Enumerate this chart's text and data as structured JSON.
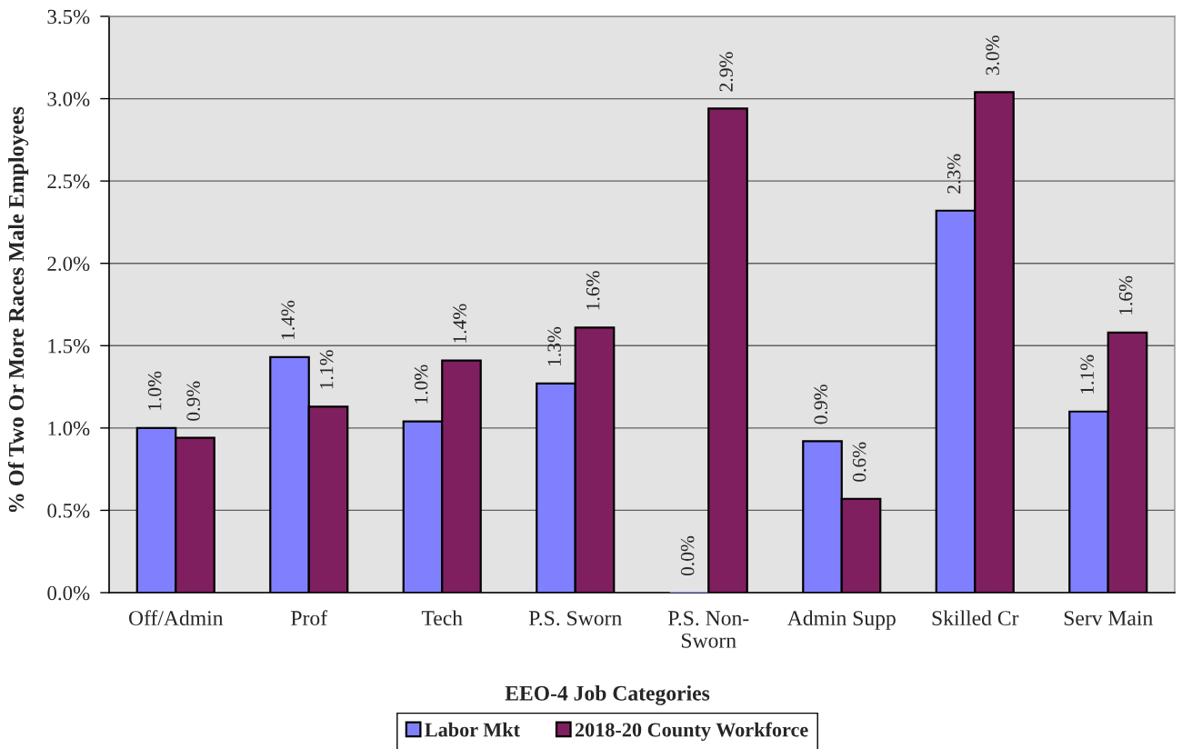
{
  "chart_data": {
    "type": "bar",
    "xlabel": "EEO-4 Job Categories",
    "ylabel": "% Of Two Or More Races Male Employees",
    "categories": [
      "Off/Admin",
      "Prof",
      "Tech",
      "P.S. Sworn",
      "P.S. Non-\nSworn",
      "Admin Supp",
      "Skilled Cr",
      "Serv Main"
    ],
    "series": [
      {
        "name": "Labor Mkt",
        "color": "#8080ff",
        "values": [
          1.0,
          1.43,
          1.04,
          1.27,
          0,
          0.92,
          2.32,
          1.1
        ],
        "value_labels": [
          "1.0%",
          "1.4%",
          "1.0%",
          "1.3%",
          "0.0%",
          "0.9%",
          "2.3%",
          "1.1%"
        ]
      },
      {
        "name": "2018-20 County Workforce",
        "color": "#7f1f5f",
        "values": [
          0.94,
          1.13,
          1.41,
          1.61,
          2.94,
          0.57,
          3.04,
          1.58
        ],
        "value_labels": [
          "0.9%",
          "1.1%",
          "1.4%",
          "1.6%",
          "2.9%",
          "0.6%",
          "3.0%",
          "1.6%"
        ]
      }
    ],
    "ylim": [
      0,
      3.5
    ],
    "yticks": [
      {
        "value": 0,
        "label": "0.0%"
      },
      {
        "value": 0.5,
        "label": "0.5%"
      },
      {
        "value": 1.0,
        "label": "1.0%"
      },
      {
        "value": 1.5,
        "label": "1.5%"
      },
      {
        "value": 2.0,
        "label": "2.0%"
      },
      {
        "value": 2.5,
        "label": "2.5%"
      },
      {
        "value": 3.0,
        "label": "3.0%"
      },
      {
        "value": 3.5,
        "label": "3.5%"
      }
    ],
    "grid": "y",
    "legend": "bottom"
  }
}
